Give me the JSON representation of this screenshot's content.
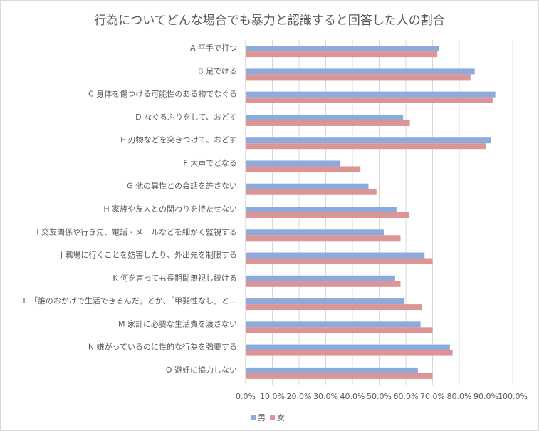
{
  "chart_data": {
    "type": "bar",
    "orientation": "horizontal",
    "title": "行為についてどんな場合でも暴力と認識すると回答した人の割合",
    "categories": [
      "A 平手で打つ",
      "B 足でける",
      "C 身体を傷つける可能性のある物でなぐる",
      "D なぐるふりをして、おどす",
      "E 刃物などを突きつけて、おどす",
      "F 大声でどなる",
      "G 他の異性との会話を許さない",
      "H 家族や友人との関わりを持たせない",
      "I 交友関係や行き先、電話・メールなどを細かく監視する",
      "J 職場に行くことを妨害したり、外出先を制限する",
      "K 何を言っても長期間無視し続ける",
      "L 「誰のおかげで生活できるんだ」とか、「甲斐性なし」と…",
      "M 家計に必要な生活費を渡さない",
      "N 嫌がっているのに性的な行為を強要する",
      "O 避妊に協力しない"
    ],
    "series": [
      {
        "name": "男",
        "color": "#8eaadb",
        "values": [
          72.5,
          85.8,
          93.5,
          59.0,
          92.0,
          35.5,
          46.0,
          56.5,
          52.0,
          67.0,
          56.0,
          59.5,
          65.5,
          76.5,
          64.5
        ]
      },
      {
        "name": "女",
        "color": "#dc9596",
        "values": [
          71.8,
          84.2,
          92.5,
          61.5,
          90.0,
          43.0,
          49.0,
          61.3,
          58.0,
          70.0,
          58.0,
          66.0,
          70.0,
          77.5,
          70.0
        ]
      }
    ],
    "xlim": [
      0,
      100
    ],
    "x_ticks": [
      "0.0%",
      "10.0%",
      "20.0%",
      "30.0%",
      "40.0%",
      "50.0%",
      "60.0%",
      "70.0%",
      "80.0%",
      "90.0%",
      "100.0%"
    ],
    "grid": true,
    "legend_position": "bottom-left",
    "xlabel": "",
    "ylabel": ""
  }
}
